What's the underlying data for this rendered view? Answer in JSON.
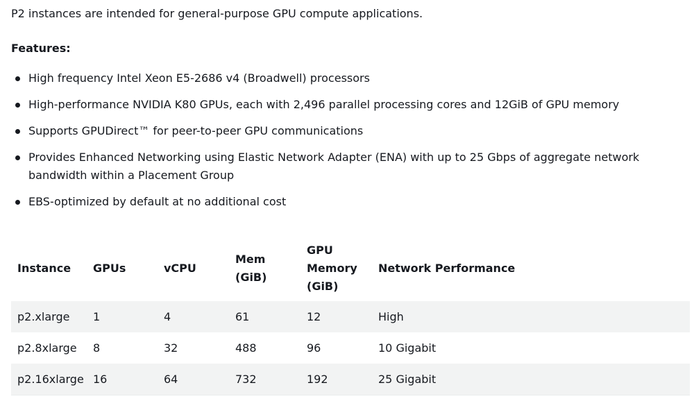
{
  "intro": "P2 instances are intended for general-purpose GPU compute applications.",
  "features": {
    "heading": "Features:",
    "items": [
      "High frequency Intel Xeon E5-2686 v4 (Broadwell) processors",
      "High-performance NVIDIA K80 GPUs, each with 2,496 parallel processing cores and 12GiB of GPU memory",
      "Supports GPUDirect™ for peer-to-peer GPU communications",
      "Provides Enhanced Networking using Elastic Network Adapter (ENA) with up to 25 Gbps of aggregate network bandwidth within a Placement Group",
      "EBS-optimized by default at no additional cost"
    ]
  },
  "table": {
    "headers": {
      "instance": "Instance",
      "gpus": "GPUs",
      "vcpu": "vCPU",
      "mem": "Mem (GiB)",
      "gpu_mem_line1": "GPU",
      "gpu_mem_line2": "Memory",
      "gpu_mem_line3": "(GiB)",
      "network": "Network Performance"
    },
    "rows": [
      {
        "instance": "p2.xlarge",
        "gpus": "1",
        "vcpu": "4",
        "mem": "61",
        "gpu_mem": "12",
        "network": "High"
      },
      {
        "instance": "p2.8xlarge",
        "gpus": "8",
        "vcpu": "32",
        "mem": "488",
        "gpu_mem": "96",
        "network": "10 Gigabit"
      },
      {
        "instance": "p2.16xlarge",
        "gpus": "16",
        "vcpu": "64",
        "mem": "732",
        "gpu_mem": "192",
        "network": "25 Gigabit"
      }
    ]
  },
  "colors": {
    "text": "#16191f",
    "row_stripe": "#f2f3f3",
    "background": "#ffffff"
  }
}
